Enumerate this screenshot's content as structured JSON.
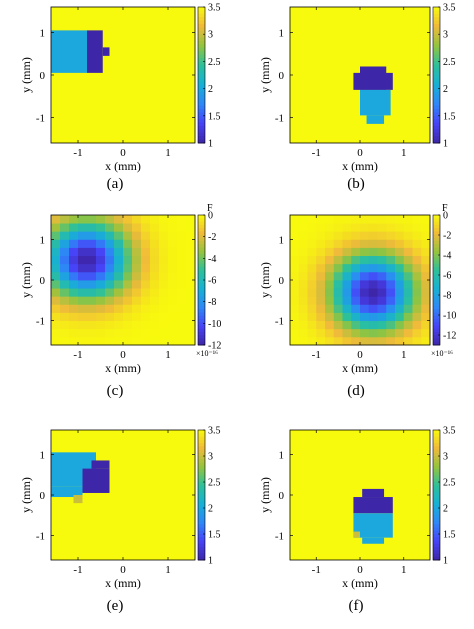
{
  "figure": {
    "captions": [
      "(a)",
      "(b)",
      "(c)",
      "(d)",
      "(e)",
      "(f)"
    ]
  },
  "colors": {
    "colormap_stops": [
      "#3e26a8",
      "#4743f7",
      "#2e87f7",
      "#17b0d5",
      "#2dc09a",
      "#93c43f",
      "#f0ba3a",
      "#f8fa0d"
    ],
    "frame": "#000000"
  },
  "chart_data": [
    {
      "type": "heatmap",
      "panel": "(a)",
      "xlabel": "x (mm)",
      "ylabel": "y (mm)",
      "xlim": [
        -1.6,
        1.6
      ],
      "ylim": [
        -1.6,
        1.6
      ],
      "xticks": [
        -1,
        0,
        1
      ],
      "yticks": [
        -1,
        0,
        1
      ],
      "colorbar": {
        "range": [
          1,
          3.5
        ],
        "ticks": [
          "1",
          "1.5",
          "2",
          "2.5",
          "3",
          "3.5"
        ],
        "label": "",
        "exponent": ""
      },
      "background_value": 3.5,
      "regions": [
        {
          "x": [
            -1.6,
            -0.8
          ],
          "y": [
            0.05,
            1.05
          ],
          "value": 2.0
        },
        {
          "x": [
            -0.8,
            -0.45
          ],
          "y": [
            0.05,
            1.05
          ],
          "value": 1.0
        },
        {
          "x": [
            -0.45,
            -0.3
          ],
          "y": [
            0.45,
            0.65
          ],
          "value": 1.0
        }
      ]
    },
    {
      "type": "heatmap",
      "panel": "(b)",
      "xlabel": "x (mm)",
      "ylabel": "y (mm)",
      "xlim": [
        -1.6,
        1.6
      ],
      "ylim": [
        -1.6,
        1.6
      ],
      "xticks": [
        -1,
        0,
        1
      ],
      "yticks": [
        -1,
        0,
        1
      ],
      "colorbar": {
        "range": [
          1,
          3.5
        ],
        "ticks": [
          "1",
          "1.5",
          "2",
          "2.5",
          "3",
          "3.5"
        ],
        "label": "",
        "exponent": ""
      },
      "background_value": 3.5,
      "regions": [
        {
          "x": [
            0.0,
            0.6
          ],
          "y": [
            -0.35,
            0.2
          ],
          "value": 1.0
        },
        {
          "x": [
            -0.15,
            0.75
          ],
          "y": [
            -0.35,
            0.05
          ],
          "value": 1.0
        },
        {
          "x": [
            0.0,
            0.7
          ],
          "y": [
            -0.95,
            -0.35
          ],
          "value": 2.0
        },
        {
          "x": [
            0.15,
            0.55
          ],
          "y": [
            -1.15,
            -0.95
          ],
          "value": 2.0
        }
      ]
    },
    {
      "type": "heatmap",
      "panel": "(c)",
      "xlabel": "x (mm)",
      "ylabel": "y (mm)",
      "xlim": [
        -1.6,
        1.6
      ],
      "ylim": [
        -1.6,
        1.6
      ],
      "xticks": [
        -1,
        0,
        1
      ],
      "yticks": [
        -1,
        0,
        1
      ],
      "grid_cells": 16,
      "colorbar": {
        "range": [
          -12,
          0
        ],
        "ticks": [
          "0",
          "-2",
          "-4",
          "-6",
          "-8",
          "-10",
          "-12"
        ],
        "label": "F",
        "exponent": "×10⁻¹⁶"
      },
      "blob": {
        "center": [
          -0.8,
          0.5
        ],
        "peak": -12,
        "radius": 0.65
      }
    },
    {
      "type": "heatmap",
      "panel": "(d)",
      "xlabel": "x (mm)",
      "ylabel": "y (mm)",
      "xlim": [
        -1.6,
        1.6
      ],
      "ylim": [
        -1.6,
        1.6
      ],
      "xticks": [
        -1,
        0,
        1
      ],
      "yticks": [
        -1,
        0,
        1
      ],
      "grid_cells": 16,
      "colorbar": {
        "range": [
          -13,
          0
        ],
        "ticks": [
          "0",
          "-2",
          "-4",
          "-6",
          "-8",
          "-10",
          "-12"
        ],
        "label": "F",
        "exponent": "×10⁻¹⁶"
      },
      "blob": {
        "center": [
          0.3,
          -0.3
        ],
        "peak": -13,
        "radius": 0.65
      }
    },
    {
      "type": "heatmap",
      "panel": "(e)",
      "xlabel": "x (mm)",
      "ylabel": "y (mm)",
      "xlim": [
        -1.6,
        1.6
      ],
      "ylim": [
        -1.6,
        1.6
      ],
      "xticks": [
        -1,
        0,
        1
      ],
      "yticks": [
        -1,
        0,
        1
      ],
      "colorbar": {
        "range": [
          1,
          3.5
        ],
        "ticks": [
          "1",
          "1.5",
          "2",
          "2.5",
          "3",
          "3.5"
        ],
        "label": "",
        "exponent": ""
      },
      "background_value": 3.5,
      "regions": [
        {
          "x": [
            -1.6,
            -0.6
          ],
          "y": [
            0.2,
            1.05
          ],
          "value": 2.0
        },
        {
          "x": [
            -1.6,
            -0.9
          ],
          "y": [
            -0.05,
            0.2
          ],
          "value": 2.0
        },
        {
          "x": [
            -0.9,
            -0.3
          ],
          "y": [
            0.05,
            0.65
          ],
          "value": 1.0
        },
        {
          "x": [
            -0.7,
            -0.3
          ],
          "y": [
            0.65,
            0.85
          ],
          "value": 1.0
        },
        {
          "x": [
            -1.1,
            -0.9
          ],
          "y": [
            -0.2,
            0.0
          ],
          "value": 3.0
        }
      ]
    },
    {
      "type": "heatmap",
      "panel": "(f)",
      "xlabel": "x (mm)",
      "ylabel": "y (mm)",
      "xlim": [
        -1.6,
        1.6
      ],
      "ylim": [
        -1.6,
        1.6
      ],
      "xticks": [
        -1,
        0,
        1
      ],
      "yticks": [
        -1,
        0,
        1
      ],
      "colorbar": {
        "range": [
          1,
          3.5
        ],
        "ticks": [
          "1",
          "1.5",
          "2",
          "2.5",
          "3",
          "3.5"
        ],
        "label": "",
        "exponent": ""
      },
      "background_value": 3.5,
      "regions": [
        {
          "x": [
            0.05,
            0.55
          ],
          "y": [
            -0.05,
            0.15
          ],
          "value": 1.0
        },
        {
          "x": [
            -0.15,
            0.75
          ],
          "y": [
            -0.45,
            -0.05
          ],
          "value": 1.0
        },
        {
          "x": [
            -0.15,
            0.75
          ],
          "y": [
            -1.05,
            -0.45
          ],
          "value": 2.0
        },
        {
          "x": [
            0.05,
            0.55
          ],
          "y": [
            -1.2,
            -1.05
          ],
          "value": 2.0
        },
        {
          "x": [
            -0.15,
            0.0
          ],
          "y": [
            -1.05,
            -0.9
          ],
          "value": 3.0
        }
      ]
    }
  ]
}
